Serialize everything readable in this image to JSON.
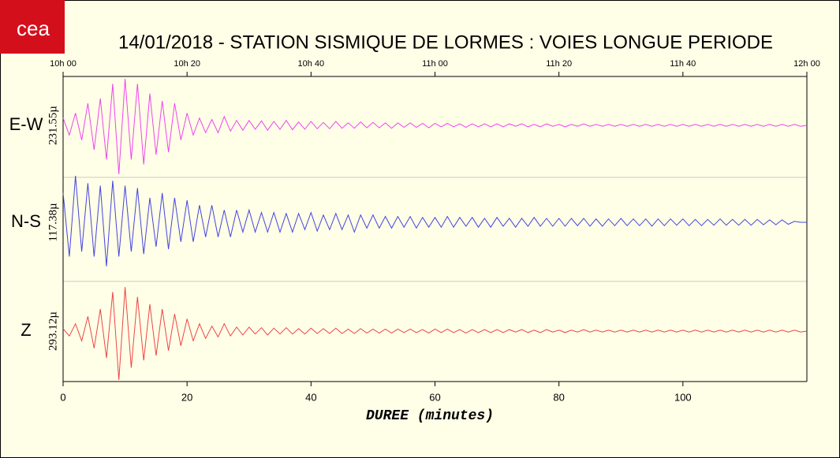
{
  "chart_data": {
    "type": "seismogram",
    "logo": "cea",
    "title": "14/01/2018  -  STATION SISMIQUE DE LORMES : VOIES LONGUE PERIODE",
    "xlabel": "DUREE (minutes)",
    "xlim": [
      0,
      120
    ],
    "xticks": [
      0,
      20,
      40,
      60,
      80,
      100
    ],
    "x2ticks": [
      {
        "value": 0,
        "label": "10h 00"
      },
      {
        "value": 20,
        "label": "10h 20"
      },
      {
        "value": 40,
        "label": "10h 40"
      },
      {
        "value": 60,
        "label": "11h 00"
      },
      {
        "value": 80,
        "label": "11h 20"
      },
      {
        "value": 100,
        "label": "11h 40"
      },
      {
        "value": 120,
        "label": "12h 00"
      }
    ],
    "ylim": [
      -1,
      1
    ],
    "x": [
      0,
      1,
      2,
      3,
      4,
      5,
      6,
      7,
      8,
      9,
      10,
      11,
      12,
      13,
      14,
      15,
      16,
      17,
      18,
      19,
      20,
      21,
      22,
      23,
      24,
      25,
      26,
      27,
      28,
      29,
      30,
      31,
      32,
      33,
      34,
      35,
      36,
      37,
      38,
      39,
      40,
      41,
      42,
      43,
      44,
      45,
      46,
      47,
      48,
      49,
      50,
      51,
      52,
      53,
      54,
      55,
      56,
      57,
      58,
      59,
      60,
      61,
      62,
      63,
      64,
      65,
      66,
      67,
      68,
      69,
      70,
      71,
      72,
      73,
      74,
      75,
      76,
      77,
      78,
      79,
      80,
      81,
      82,
      83,
      84,
      85,
      86,
      87,
      88,
      89,
      90,
      91,
      92,
      93,
      94,
      95,
      96,
      97,
      98,
      99,
      100,
      101,
      102,
      103,
      104,
      105,
      106,
      107,
      108,
      109,
      110,
      111,
      112,
      113,
      114,
      115,
      116,
      117,
      118,
      119,
      120
    ],
    "series": [
      {
        "name": "E-W",
        "scale": "231.55µ",
        "color": "#ee44ee",
        "values": [
          0.15,
          -0.2,
          0.25,
          -0.3,
          0.45,
          -0.5,
          0.55,
          -0.7,
          0.85,
          -1.0,
          0.95,
          -0.7,
          0.85,
          -0.8,
          0.65,
          -0.6,
          0.5,
          -0.55,
          0.45,
          -0.3,
          0.25,
          -0.2,
          0.15,
          -0.15,
          0.12,
          -0.15,
          0.18,
          -0.12,
          0.1,
          -0.1,
          0.1,
          -0.08,
          0.09,
          -0.1,
          0.08,
          -0.08,
          0.1,
          -0.09,
          0.07,
          -0.08,
          0.08,
          -0.07,
          0.06,
          -0.07,
          0.08,
          -0.06,
          0.05,
          -0.06,
          0.07,
          -0.05,
          0.06,
          -0.05,
          0.05,
          -0.06,
          0.05,
          -0.04,
          0.05,
          -0.04,
          0.04,
          -0.05,
          0.04,
          -0.03,
          0.04,
          -0.03,
          0.03,
          -0.04,
          0.03,
          -0.03,
          0.03,
          -0.03,
          0.03,
          -0.03,
          0.03,
          -0.02,
          0.03,
          -0.03,
          0.02,
          -0.03,
          0.03,
          -0.02,
          0.02,
          -0.03,
          0.02,
          -0.02,
          0.03,
          -0.02,
          0.02,
          -0.02,
          0.02,
          -0.02,
          0.02,
          -0.02,
          0.02,
          -0.02,
          0.02,
          -0.02,
          0.02,
          -0.02,
          0.02,
          -0.02,
          0.02,
          -0.02,
          0.02,
          -0.02,
          0.02,
          -0.02,
          0.02,
          -0.02,
          0.02,
          -0.02,
          0.02,
          -0.02,
          0.02,
          -0.02,
          0.02,
          -0.02,
          0.02,
          -0.02,
          0.02,
          -0.02,
          0
        ]
      },
      {
        "name": "N-S",
        "scale": "117.38µ",
        "color": "#4444dd",
        "values": [
          0.6,
          -0.7,
          0.95,
          -0.6,
          0.8,
          -0.7,
          0.75,
          -0.9,
          0.85,
          -0.7,
          0.75,
          -0.6,
          0.7,
          -0.65,
          0.5,
          -0.5,
          0.6,
          -0.55,
          0.5,
          -0.4,
          0.45,
          -0.4,
          0.35,
          -0.3,
          0.35,
          -0.3,
          0.25,
          -0.3,
          0.25,
          -0.2,
          0.25,
          -0.2,
          0.2,
          -0.2,
          0.2,
          -0.2,
          0.18,
          -0.2,
          0.18,
          -0.15,
          0.2,
          -0.18,
          0.15,
          -0.15,
          0.18,
          -0.15,
          0.15,
          -0.2,
          0.15,
          -0.12,
          0.15,
          -0.12,
          0.12,
          -0.12,
          0.12,
          -0.1,
          0.12,
          -0.12,
          0.1,
          -0.1,
          0.1,
          -0.1,
          0.12,
          -0.1,
          0.1,
          -0.08,
          0.1,
          -0.1,
          0.08,
          -0.1,
          0.1,
          -0.08,
          0.08,
          -0.1,
          0.08,
          -0.08,
          0.1,
          -0.08,
          0.08,
          -0.08,
          0.08,
          -0.08,
          0.08,
          -0.07,
          0.08,
          -0.08,
          0.07,
          -0.08,
          0.07,
          -0.07,
          0.08,
          -0.07,
          0.07,
          -0.07,
          0.07,
          -0.08,
          0.07,
          -0.07,
          0.07,
          -0.06,
          0.07,
          -0.07,
          0.06,
          -0.07,
          0.06,
          -0.06,
          0.07,
          -0.06,
          0.06,
          -0.06,
          0.06,
          -0.06,
          0.06,
          -0.05,
          0.05,
          -0.05,
          0.05,
          -0.04,
          0.02,
          0,
          0
        ]
      },
      {
        "name": "Z",
        "scale": "293.12µ",
        "color": "#ee4444",
        "values": [
          0.05,
          -0.1,
          0.15,
          -0.2,
          0.3,
          -0.35,
          0.45,
          -0.55,
          0.8,
          -1.0,
          0.9,
          -0.75,
          0.7,
          -0.6,
          0.55,
          -0.5,
          0.45,
          -0.4,
          0.35,
          -0.3,
          0.25,
          -0.2,
          0.15,
          -0.15,
          0.1,
          -0.12,
          0.15,
          -0.1,
          0.08,
          -0.08,
          0.08,
          -0.06,
          0.07,
          -0.08,
          0.06,
          -0.06,
          0.07,
          -0.06,
          0.05,
          -0.06,
          0.06,
          -0.05,
          0.05,
          -0.05,
          0.06,
          -0.05,
          0.04,
          -0.05,
          0.05,
          -0.04,
          0.04,
          -0.04,
          0.04,
          -0.04,
          0.04,
          -0.03,
          0.04,
          -0.03,
          0.03,
          -0.04,
          0.04,
          -0.03,
          0.04,
          -0.03,
          0.03,
          -0.04,
          0.03,
          -0.03,
          0.03,
          -0.03,
          0.03,
          -0.03,
          0.03,
          -0.02,
          0.03,
          -0.03,
          0.02,
          -0.03,
          0.03,
          -0.02,
          0.02,
          -0.03,
          0.02,
          -0.02,
          0.03,
          -0.02,
          0.02,
          -0.02,
          0.02,
          -0.02,
          0.02,
          -0.02,
          0.02,
          -0.02,
          0.02,
          -0.02,
          0.02,
          -0.02,
          0.02,
          -0.02,
          0.02,
          -0.02,
          0.02,
          -0.02,
          0.02,
          -0.02,
          0.02,
          -0.02,
          0.02,
          -0.02,
          0.02,
          -0.02,
          0.02,
          -0.02,
          0.02,
          -0.02,
          0.02,
          -0.02,
          0.02,
          -0.02,
          0
        ]
      }
    ]
  }
}
